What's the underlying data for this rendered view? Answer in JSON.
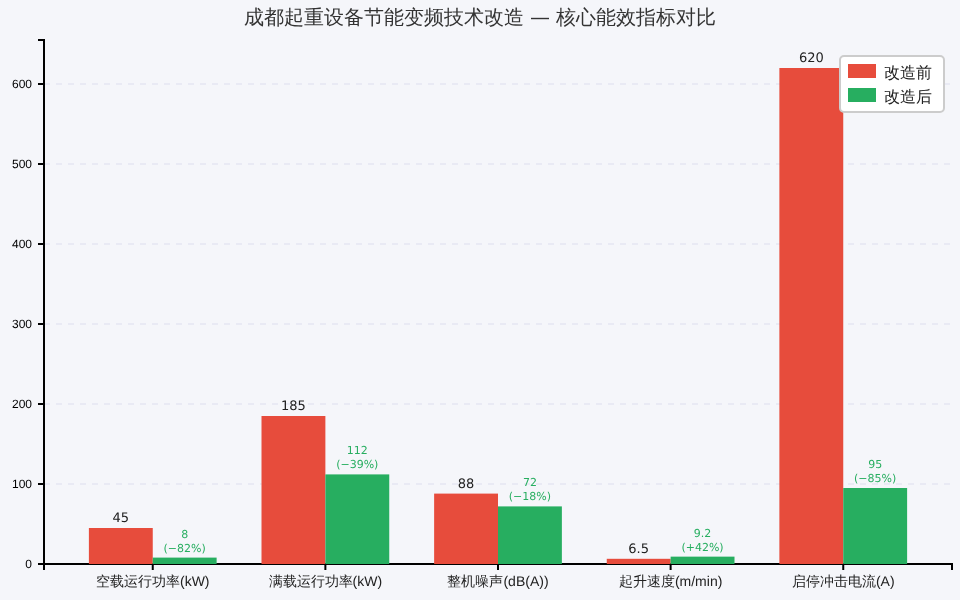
{
  "chart_data": {
    "type": "bar",
    "title": "成都起重设备节能变频技术改造 — 核心能效指标对比",
    "categories": [
      "空载运行功率(kW)",
      "满载运行功率(kW)",
      "整机噪声(dB(A))",
      "起升速度(m/min)",
      "启停冲击电流(A)"
    ],
    "series": [
      {
        "name": "改造前",
        "color": "#e74c3c",
        "values": [
          45,
          185,
          88,
          6.5,
          620
        ],
        "value_labels": [
          "45",
          "185",
          "88",
          "6.5",
          "620"
        ]
      },
      {
        "name": "改造后",
        "color": "#27ae60",
        "values": [
          8,
          112,
          72,
          9.2,
          95
        ],
        "value_labels": [
          "8\n(−82%)",
          "112\n(−39%)",
          "72\n(−18%)",
          "9.2\n(+42%)",
          "95\n(−85%)"
        ]
      }
    ],
    "ylim": [
      0,
      655
    ],
    "yticks": [
      0,
      100,
      200,
      300,
      400,
      500,
      600
    ],
    "grid": "y",
    "legend": "top right"
  }
}
